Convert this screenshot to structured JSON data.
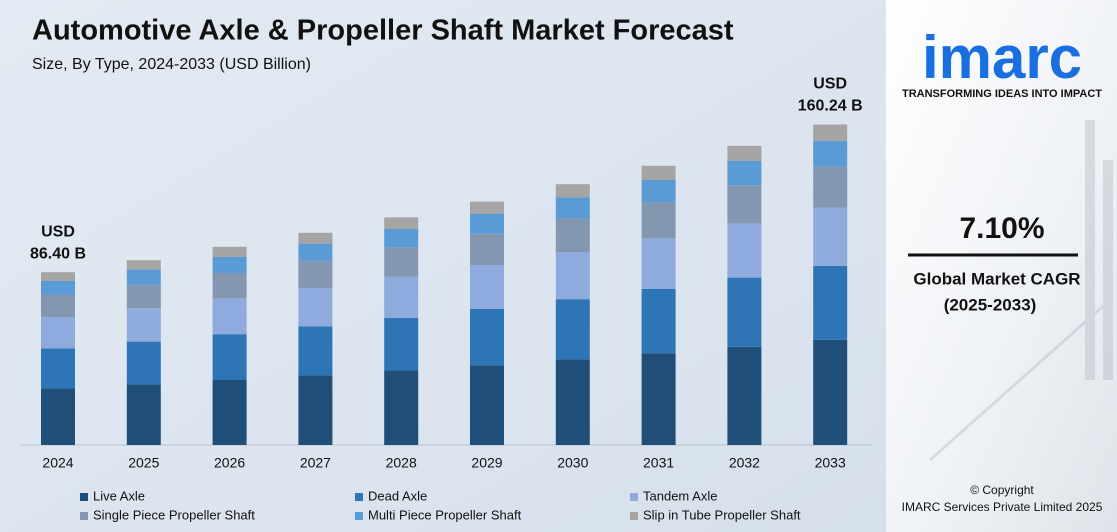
{
  "chart_data": {
    "type": "bar",
    "stacked": true,
    "title": "Automotive Axle & Propeller Shaft Market Forecast",
    "subtitle": "Size, By Type, 2024-2033 (USD Billion)",
    "categories": [
      "2024",
      "2025",
      "2026",
      "2027",
      "2028",
      "2029",
      "2030",
      "2031",
      "2032",
      "2033"
    ],
    "series": [
      {
        "name": "Live Axle",
        "color": "#1f4e79",
        "values": [
          28.3,
          30.3,
          32.5,
          34.8,
          37.3,
          39.9,
          42.8,
          45.8,
          49.1,
          52.6
        ]
      },
      {
        "name": "Dead Axle",
        "color": "#2e75b6",
        "values": [
          20.0,
          21.4,
          22.9,
          24.5,
          26.3,
          28.1,
          30.1,
          32.2,
          34.6,
          37.0
        ]
      },
      {
        "name": "Tandem Axle",
        "color": "#8faadc",
        "values": [
          15.6,
          16.7,
          17.9,
          19.2,
          20.6,
          22.0,
          23.6,
          25.3,
          27.1,
          29.0
        ]
      },
      {
        "name": "Single Piece Propeller Shaft",
        "color": "#8497b0",
        "values": [
          11.1,
          11.8,
          12.7,
          13.6,
          14.6,
          15.6,
          16.7,
          17.9,
          19.1,
          20.5
        ]
      },
      {
        "name": "Multi Piece Propeller Shaft",
        "color": "#5b9bd5",
        "values": [
          7.0,
          7.5,
          8.0,
          8.6,
          9.2,
          9.9,
          10.6,
          11.3,
          12.1,
          13.0
        ]
      },
      {
        "name": "Slip in Tube Propeller Shaft",
        "color": "#a5a5a5",
        "values": [
          4.4,
          4.7,
          5.1,
          5.4,
          5.8,
          6.2,
          6.6,
          7.1,
          7.6,
          8.14
        ]
      }
    ],
    "annotations": [
      [
        "USD",
        "86.40 B"
      ],
      [
        "USD",
        "160.24 B"
      ]
    ],
    "ylim": [
      0,
      170
    ],
    "grid": false
  },
  "sidebar": {
    "logo": "imarc",
    "tagline": "TRANSFORMING IDEAS INTO IMPACT",
    "cagr": "7.10%",
    "cagr_label": [
      "Global Market CAGR",
      "(2025-2033)"
    ],
    "copyright": [
      "© Copyright",
      "IMARC Services Private Limited 2025"
    ]
  }
}
